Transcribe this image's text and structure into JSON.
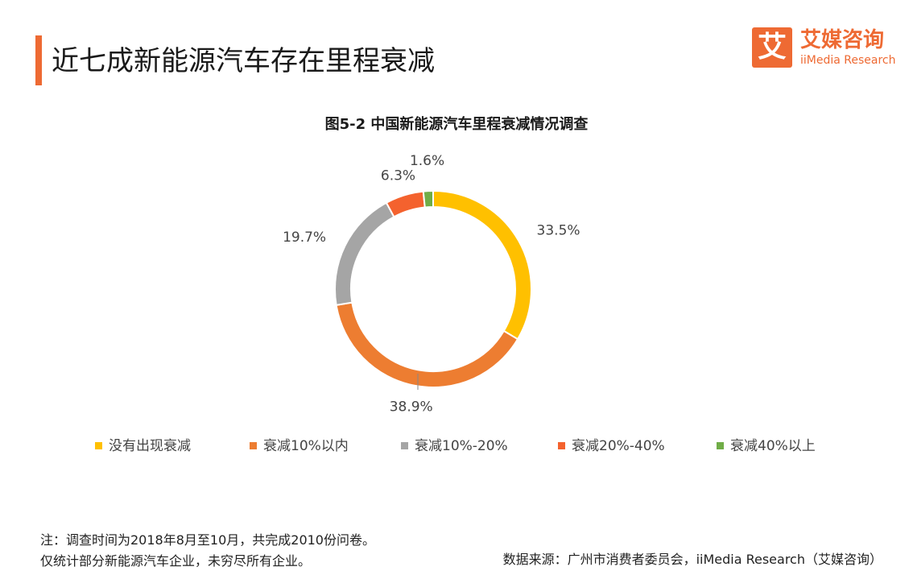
{
  "header": {
    "title": "近七成新能源汽车存在里程衰减",
    "accent_color": "#ee6a33"
  },
  "logo": {
    "glyph": "艾",
    "name_cn": "艾媒咨询",
    "name_en": "iiMedia Research"
  },
  "chart_data": {
    "type": "pie",
    "style": "donut",
    "title": "图5-2 中国新能源汽车里程衰减情况调查",
    "legend_position": "bottom",
    "slices": [
      {
        "name": "没有出现衰减",
        "value": 33.5,
        "label": "33.5%",
        "color": "#ffc000"
      },
      {
        "name": "衰减10%以内",
        "value": 38.9,
        "label": "38.9%",
        "color": "#ed7d31"
      },
      {
        "name": "衰减10%-20%",
        "value": 19.7,
        "label": "19.7%",
        "color": "#a5a5a5"
      },
      {
        "name": "衰减20%-40%",
        "value": 6.3,
        "label": "6.3%",
        "color": "#f4622e"
      },
      {
        "name": "衰减40%以上",
        "value": 1.6,
        "label": "1.6%",
        "color": "#70ad47"
      }
    ]
  },
  "footer": {
    "note_line1": "注：调查时间为2018年8月至10月，共完成2010份问卷。",
    "note_line2": "仅统计部分新能源汽车企业，未穷尽所有企业。",
    "source": "数据来源：广州市消费者委员会，iiMedia Research（艾媒咨询）"
  }
}
